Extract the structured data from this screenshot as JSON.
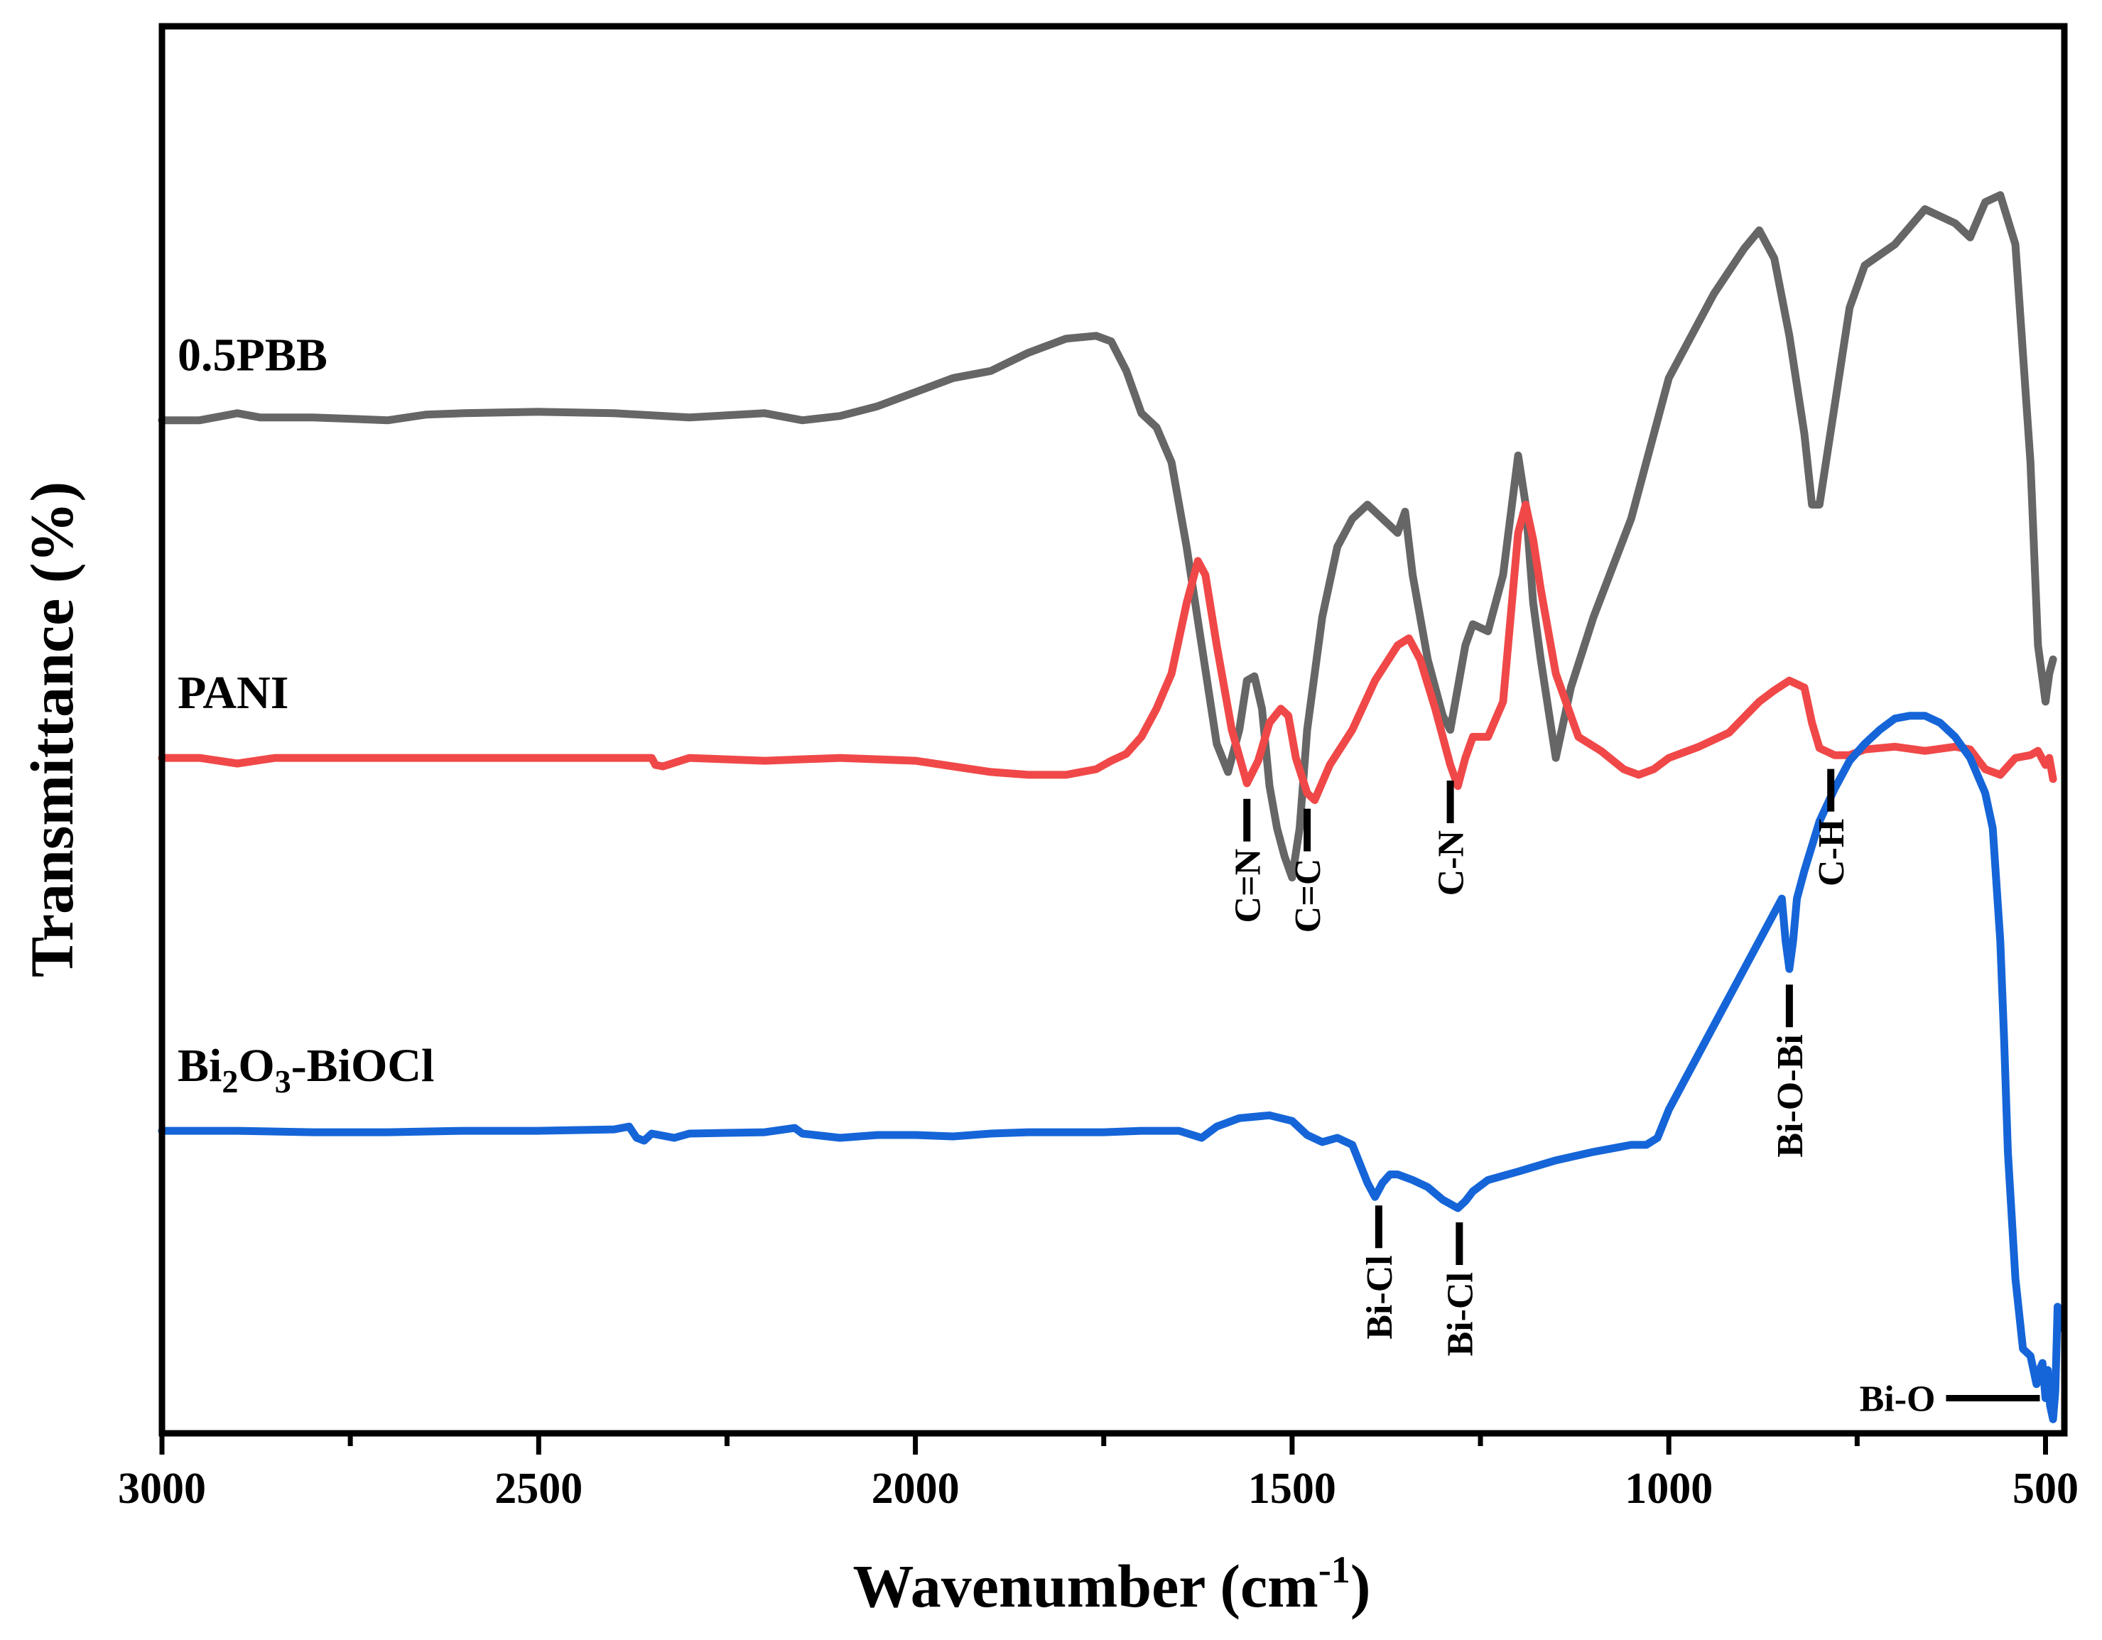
{
  "chart_data": {
    "type": "line",
    "title": "",
    "xlabel": "Wavenumber (cm",
    "xlabel_sup": "-1",
    "xlabel_close": ")",
    "ylabel": "Transmittance (%)",
    "xlim": [
      3000,
      475
    ],
    "ylim": [
      0,
      10
    ],
    "x_reversed": true,
    "grid": false,
    "legend": "none",
    "x_ticks": [
      3000,
      2500,
      2000,
      1500,
      1000,
      500
    ],
    "x_tick_labels": [
      "3000",
      "2500",
      "2000",
      "1500",
      "1000",
      "500"
    ],
    "x_minor_ticks": [
      2750,
      2250,
      1750,
      1250,
      750
    ],
    "y_ticks_shown": false,
    "series": [
      {
        "name": "0.5PBB",
        "label_parts": [
          {
            "text": "0.5PBB",
            "sub": false
          }
        ],
        "color": "#666666",
        "x": [
          3000,
          2950,
          2900,
          2870,
          2800,
          2700,
          2650,
          2600,
          2500,
          2400,
          2300,
          2200,
          2150,
          2100,
          2050,
          2000,
          1950,
          1900,
          1850,
          1800,
          1760,
          1740,
          1720,
          1700,
          1680,
          1660,
          1640,
          1620,
          1600,
          1585,
          1570,
          1560,
          1550,
          1540,
          1530,
          1520,
          1510,
          1500,
          1490,
          1480,
          1460,
          1440,
          1420,
          1400,
          1380,
          1360,
          1350,
          1340,
          1320,
          1300,
          1290,
          1280,
          1270,
          1260,
          1240,
          1220,
          1200,
          1190,
          1180,
          1170,
          1150,
          1130,
          1100,
          1050,
          1000,
          970,
          940,
          900,
          880,
          860,
          840,
          820,
          810,
          800,
          780,
          760,
          740,
          700,
          660,
          620,
          600,
          580,
          560,
          540,
          520,
          510,
          500,
          495,
          490
        ],
        "values": [
          7.2,
          7.2,
          7.25,
          7.22,
          7.22,
          7.2,
          7.24,
          7.25,
          7.26,
          7.25,
          7.22,
          7.25,
          7.2,
          7.23,
          7.3,
          7.4,
          7.5,
          7.55,
          7.68,
          7.78,
          7.8,
          7.76,
          7.55,
          7.25,
          7.15,
          6.9,
          6.3,
          5.6,
          4.9,
          4.7,
          5.0,
          5.35,
          5.38,
          5.15,
          4.6,
          4.3,
          4.1,
          3.95,
          4.3,
          5.0,
          5.8,
          6.3,
          6.5,
          6.6,
          6.5,
          6.4,
          6.55,
          6.1,
          5.5,
          5.1,
          5.0,
          5.3,
          5.6,
          5.75,
          5.7,
          6.1,
          6.95,
          6.6,
          5.9,
          5.5,
          4.8,
          5.3,
          5.8,
          6.5,
          7.5,
          7.8,
          8.1,
          8.42,
          8.55,
          8.35,
          7.8,
          7.1,
          6.6,
          6.6,
          7.3,
          8.0,
          8.3,
          8.45,
          8.7,
          8.6,
          8.5,
          8.75,
          8.8,
          8.45,
          6.9,
          5.6,
          5.2,
          5.4,
          5.5
        ]
      },
      {
        "name": "PANI",
        "label_parts": [
          {
            "text": "PANI",
            "sub": false
          }
        ],
        "color": "#f04848",
        "x": [
          3000,
          2950,
          2900,
          2850,
          2800,
          2700,
          2600,
          2500,
          2400,
          2350,
          2345,
          2335,
          2300,
          2200,
          2100,
          2000,
          1950,
          1900,
          1850,
          1800,
          1760,
          1740,
          1720,
          1700,
          1680,
          1660,
          1640,
          1625,
          1615,
          1600,
          1580,
          1560,
          1545,
          1530,
          1515,
          1505,
          1495,
          1480,
          1470,
          1450,
          1420,
          1390,
          1360,
          1345,
          1330,
          1310,
          1290,
          1280,
          1270,
          1260,
          1240,
          1220,
          1200,
          1190,
          1180,
          1170,
          1150,
          1120,
          1090,
          1060,
          1040,
          1020,
          1000,
          960,
          920,
          880,
          860,
          840,
          820,
          810,
          800,
          780,
          760,
          740,
          700,
          660,
          620,
          600,
          580,
          560,
          540,
          520,
          510,
          500,
          495,
          490
        ],
        "values": [
          4.8,
          4.8,
          4.76,
          4.8,
          4.8,
          4.8,
          4.8,
          4.8,
          4.8,
          4.8,
          4.75,
          4.74,
          4.8,
          4.78,
          4.8,
          4.78,
          4.74,
          4.7,
          4.68,
          4.68,
          4.72,
          4.78,
          4.83,
          4.95,
          5.15,
          5.4,
          5.9,
          6.2,
          6.1,
          5.6,
          5.0,
          4.62,
          4.78,
          5.05,
          5.15,
          5.1,
          4.8,
          4.55,
          4.5,
          4.75,
          5.0,
          5.35,
          5.6,
          5.65,
          5.5,
          5.15,
          4.75,
          4.6,
          4.8,
          4.95,
          4.95,
          5.2,
          6.4,
          6.6,
          6.35,
          6.0,
          5.4,
          4.95,
          4.85,
          4.72,
          4.68,
          4.72,
          4.8,
          4.88,
          4.98,
          5.2,
          5.28,
          5.35,
          5.3,
          5.05,
          4.87,
          4.82,
          4.82,
          4.86,
          4.88,
          4.85,
          4.88,
          4.86,
          4.72,
          4.68,
          4.8,
          4.82,
          4.85,
          4.75,
          4.8,
          4.65
        ]
      },
      {
        "name": "Bi2O3-BiOCl",
        "label_parts": [
          {
            "text": "Bi",
            "sub": false
          },
          {
            "text": "2",
            "sub": true
          },
          {
            "text": "O",
            "sub": false
          },
          {
            "text": "3",
            "sub": true
          },
          {
            "text": "-BiOCl",
            "sub": false
          }
        ],
        "color": "#1565d8",
        "x": [
          3000,
          2900,
          2800,
          2700,
          2600,
          2500,
          2400,
          2380,
          2370,
          2360,
          2350,
          2340,
          2320,
          2300,
          2200,
          2160,
          2150,
          2100,
          2050,
          2000,
          1950,
          1900,
          1850,
          1800,
          1750,
          1700,
          1650,
          1620,
          1600,
          1570,
          1530,
          1500,
          1480,
          1460,
          1440,
          1420,
          1400,
          1390,
          1380,
          1370,
          1360,
          1340,
          1320,
          1300,
          1280,
          1270,
          1260,
          1240,
          1200,
          1150,
          1100,
          1050,
          1030,
          1015,
          1000,
          960,
          920,
          880,
          850,
          845,
          840,
          835,
          830,
          820,
          800,
          780,
          760,
          740,
          720,
          700,
          680,
          660,
          640,
          620,
          600,
          580,
          570,
          560,
          555,
          550,
          540,
          530,
          520,
          512,
          508,
          504,
          500,
          497,
          494,
          490,
          487,
          484,
          480
        ],
        "values": [
          2.15,
          2.15,
          2.14,
          2.14,
          2.15,
          2.15,
          2.16,
          2.18,
          2.1,
          2.08,
          2.13,
          2.12,
          2.1,
          2.13,
          2.14,
          2.17,
          2.13,
          2.1,
          2.12,
          2.12,
          2.11,
          2.13,
          2.14,
          2.14,
          2.14,
          2.15,
          2.15,
          2.1,
          2.18,
          2.24,
          2.26,
          2.22,
          2.12,
          2.07,
          2.1,
          2.05,
          1.78,
          1.68,
          1.78,
          1.84,
          1.84,
          1.8,
          1.75,
          1.66,
          1.6,
          1.65,
          1.72,
          1.8,
          1.86,
          1.94,
          2.0,
          2.05,
          2.05,
          2.1,
          2.3,
          2.7,
          3.1,
          3.5,
          3.8,
          3.5,
          3.3,
          3.5,
          3.8,
          4.0,
          4.35,
          4.58,
          4.78,
          4.9,
          5.0,
          5.08,
          5.1,
          5.1,
          5.05,
          4.95,
          4.8,
          4.55,
          4.3,
          3.5,
          2.8,
          2.0,
          1.1,
          0.6,
          0.55,
          0.35,
          0.45,
          0.5,
          0.25,
          0.45,
          0.2,
          0.1,
          0.3,
          0.9,
          0.75
        ]
      }
    ],
    "annotations": [
      {
        "label": "C=N",
        "x": 1560,
        "series": "PANI"
      },
      {
        "label": "C=C",
        "x": 1480,
        "series": "PANI"
      },
      {
        "label": "C-N",
        "x": 1290,
        "series": "PANI"
      },
      {
        "label": "C-H",
        "x": 785,
        "series": "PANI"
      },
      {
        "label": "Bi-Cl",
        "x": 1385,
        "series": "Bi2O3-BiOCl"
      },
      {
        "label": "Bi-Cl",
        "x": 1278,
        "series": "Bi2O3-BiOCl"
      },
      {
        "label": "Bi-O-Bi",
        "x": 840,
        "series": "Bi2O3-BiOCl"
      },
      {
        "label": "Bi-O",
        "x": 500,
        "series": "Bi2O3-BiOCl",
        "horizontal": true
      }
    ]
  }
}
